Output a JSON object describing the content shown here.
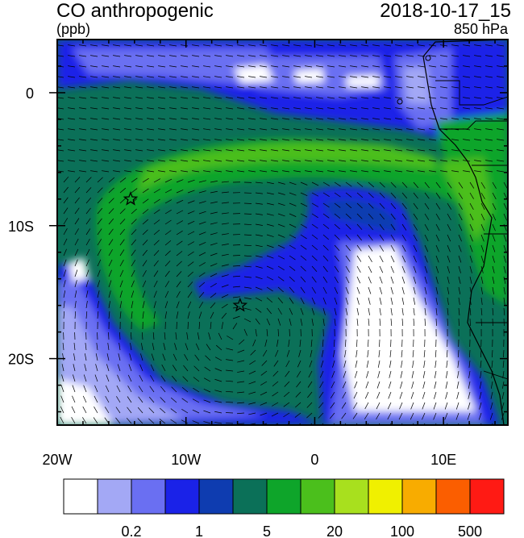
{
  "header": {
    "title": "CO anthropogenic",
    "units": "(ppb)",
    "datetime": "2018-10-17_15",
    "level": "850 hPa"
  },
  "axes": {
    "x_ticks": [
      "20W",
      "10W",
      "0",
      "10E"
    ],
    "y_ticks": [
      "0",
      "10S",
      "20S"
    ]
  },
  "colorbar": {
    "colors": [
      "#ffffff",
      "#a3a8f5",
      "#6a6ff2",
      "#1a22e8",
      "#0e3cb0",
      "#0b7058",
      "#0ea52a",
      "#4bbf1c",
      "#a8e01e",
      "#f0f000",
      "#f8ac00",
      "#fb5e00",
      "#ff1a14"
    ],
    "labels": [
      "0.2",
      "1",
      "5",
      "20",
      "100",
      "500"
    ]
  },
  "markers": [
    {
      "name": "star-marker-north",
      "lon": -14.3,
      "lat": -8.0
    },
    {
      "name": "star-marker-south",
      "lon": -5.8,
      "lat": -16.0
    }
  ]
}
